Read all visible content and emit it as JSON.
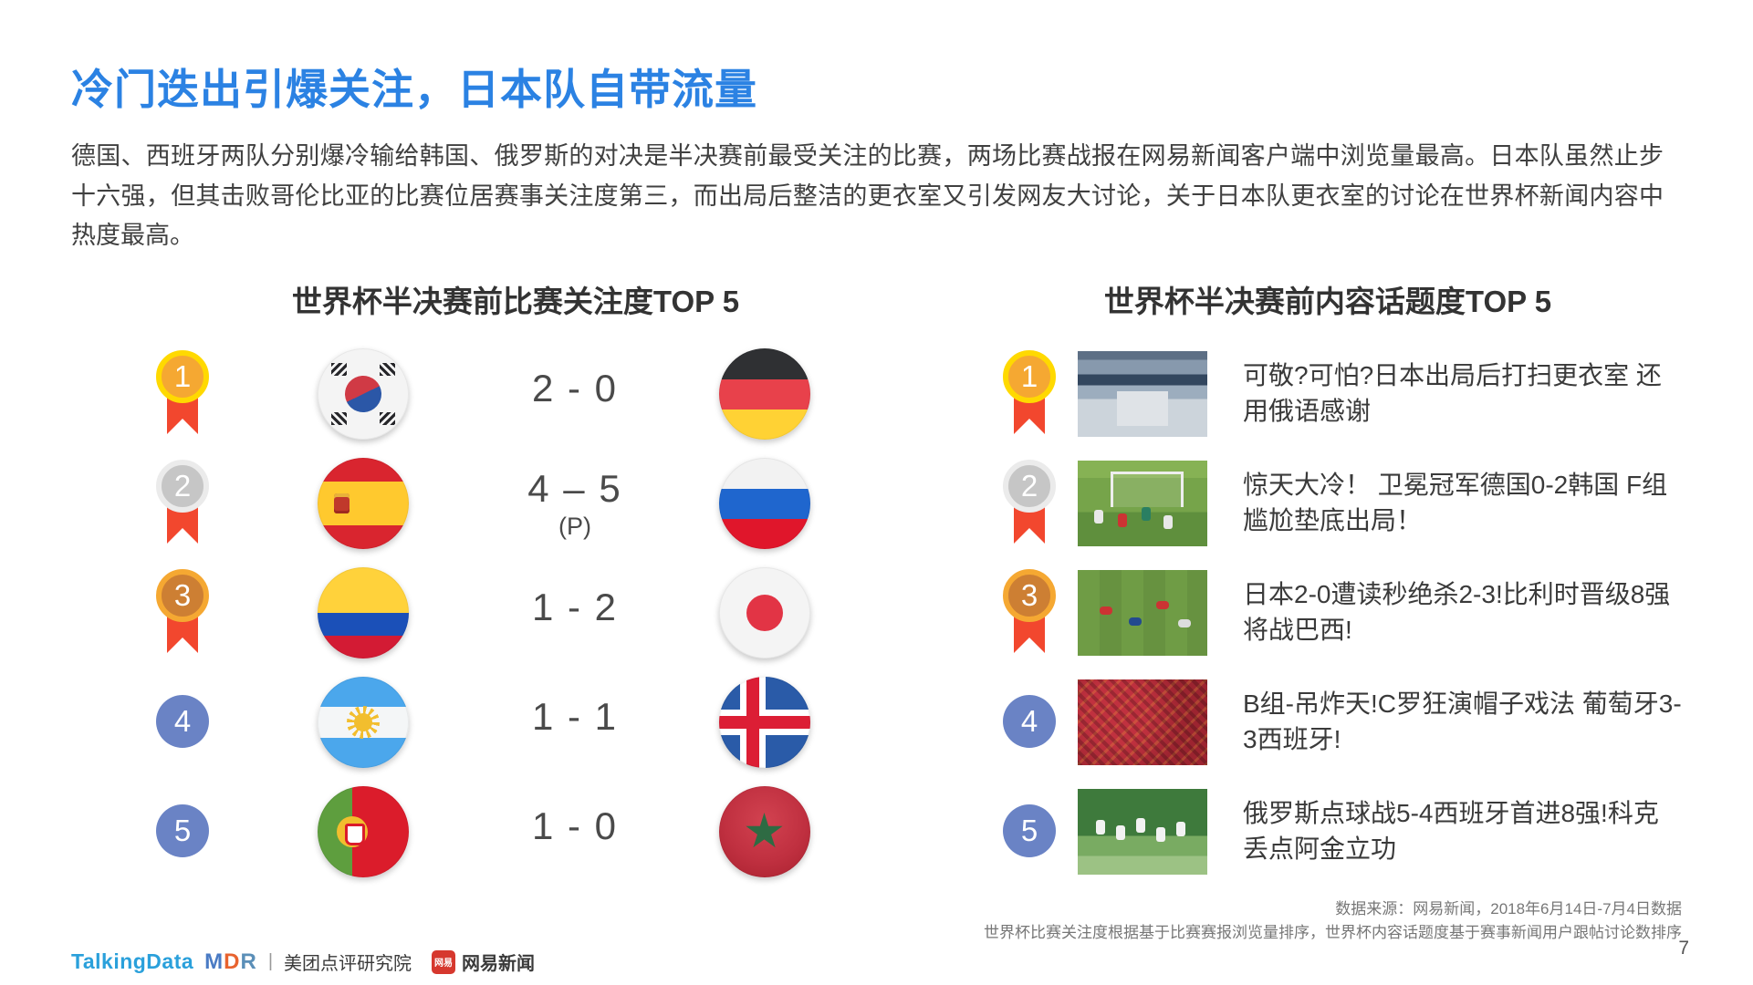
{
  "page": {
    "title": "冷门迭出引爆关注，日本队自带流量",
    "paragraph": "德国、西班牙两队分别爆冷输给韩国、俄罗斯的对决是半决赛前最受关注的比赛，两场比赛战报在网易新闻客户端中浏览量最高。日本队虽然止步十六强，但其击败哥伦比亚的比赛位居赛事关注度第三，而出局后整洁的更衣室又引发网友大讨论，关于日本队更衣室的讨论在世界杯新闻内容中热度最高。",
    "page_number": "7"
  },
  "left_panel": {
    "header": "世界杯半决赛前比赛关注度TOP 5",
    "rows": [
      {
        "rank": "1",
        "medal": "gold",
        "team_left": "south-korea",
        "score": "2 - 0",
        "score_note": "",
        "team_right": "germany"
      },
      {
        "rank": "2",
        "medal": "silver",
        "team_left": "spain",
        "score": "4 – 5",
        "score_note": "(P)",
        "team_right": "russia"
      },
      {
        "rank": "3",
        "medal": "bronze",
        "team_left": "colombia",
        "score": "1 - 2",
        "score_note": "",
        "team_right": "japan"
      },
      {
        "rank": "4",
        "medal": "plain",
        "team_left": "argentina",
        "score": "1 - 1",
        "score_note": "",
        "team_right": "iceland"
      },
      {
        "rank": "5",
        "medal": "plain",
        "team_left": "portugal",
        "score": "1 - 0",
        "score_note": "",
        "team_right": "morocco"
      }
    ]
  },
  "right_panel": {
    "header": "世界杯半决赛前内容话题度TOP 5",
    "rows": [
      {
        "rank": "1",
        "medal": "gold",
        "thumbnail": "locker-room",
        "headline": "可敬?可怕?日本出局后打扫更衣室 还用俄语感谢"
      },
      {
        "rank": "2",
        "medal": "silver",
        "thumbnail": "goal-scene",
        "headline": "惊天大冷！ 卫冕冠军德国0-2韩国 F组尴尬垫底出局！"
      },
      {
        "rank": "3",
        "medal": "bronze",
        "thumbnail": "pitch-players",
        "headline": "日本2-0遭读秒绝杀2-3!比利时晋级8强将战巴西!"
      },
      {
        "rank": "4",
        "medal": "plain",
        "thumbnail": "crowd",
        "headline": "B组-吊炸天!C罗狂演帽子戏法 葡萄牙3-3西班牙!"
      },
      {
        "rank": "5",
        "medal": "plain",
        "thumbnail": "celebration",
        "headline": "俄罗斯点球战5-4西班牙首进8强!科克丢点阿金立功"
      }
    ]
  },
  "footer": {
    "source_line1": "数据来源：网易新闻，2018年6月14日-7月4日数据",
    "source_line2": "世界杯比赛关注度根据基于比赛赛报浏览量排序，世界杯内容话题度基于赛事新闻用户跟帖讨论数排序",
    "logos": {
      "talkingdata": "TalkingData",
      "mdr_letters": [
        "M",
        "D",
        "R"
      ],
      "divider": "|",
      "meituan_label": "美团点评研究院",
      "netease_badge": "网易",
      "netease_label": "网易新闻"
    }
  },
  "colors": {
    "title_blue": "#2B82E3",
    "medal_gold": "#FFD900",
    "medal_silver": "#EBEBEB",
    "medal_bronze": "#F5A832",
    "ribbon_red": "#F2472E",
    "rank_circle_blue": "#6A83C5"
  }
}
